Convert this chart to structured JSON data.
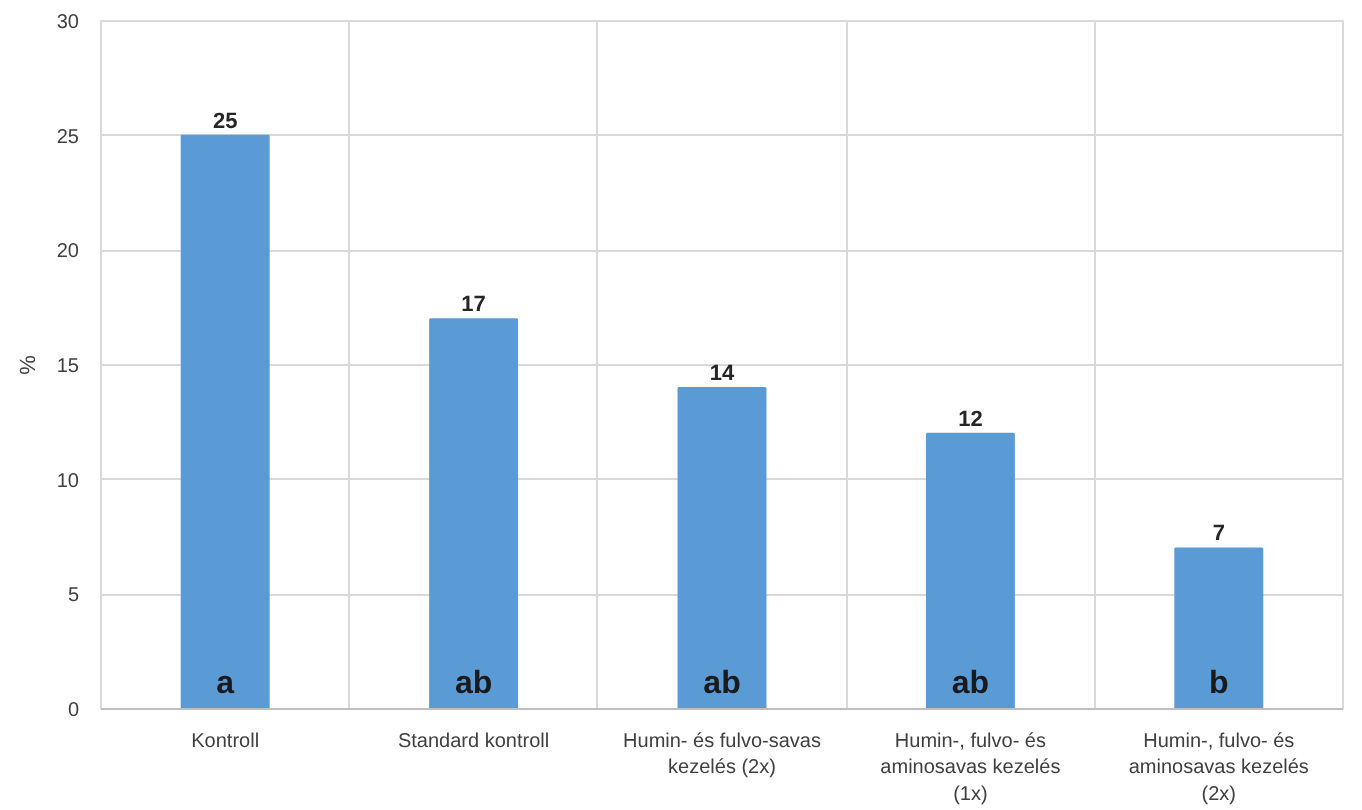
{
  "chart_data": {
    "type": "bar",
    "ylabel": "%",
    "categories": [
      "Kontroll",
      "Standard kontroll",
      "Humin- és fulvo-savas kezelés (2x)",
      "Humin-, fulvo- és aminosavas kezelés (1x)",
      "Humin-, fulvo- és aminosavas kezelés (2x)"
    ],
    "values": [
      25,
      17,
      14,
      12,
      7
    ],
    "color": "#5b9bd5",
    "data_labels": true,
    "ylim": [
      0,
      30
    ],
    "yticks": [
      0,
      5,
      10,
      15,
      20,
      25,
      30
    ],
    "grid": true,
    "annotations": [
      "a",
      "ab",
      "ab",
      "ab",
      "b"
    ]
  }
}
